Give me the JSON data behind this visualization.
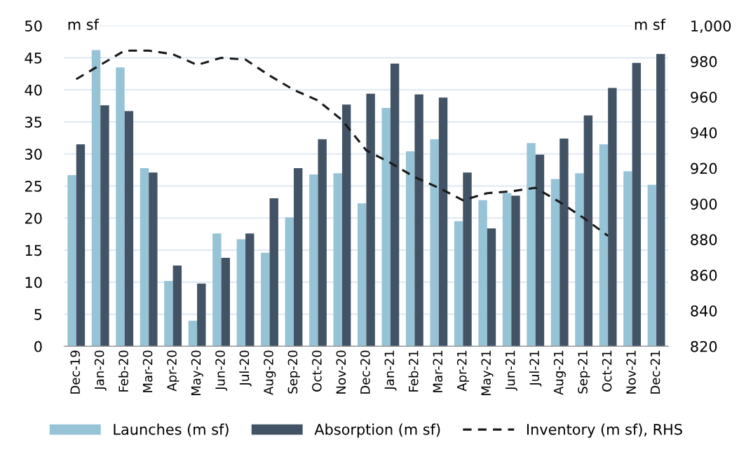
{
  "chart_data": {
    "type": "bar",
    "categories": [
      "Dec-19",
      "Jan-20",
      "Feb-20",
      "Mar-20",
      "Apr-20",
      "May-20",
      "Jun-20",
      "Jul-20",
      "Aug-20",
      "Sep-20",
      "Oct-20",
      "Nov-20",
      "Dec-20",
      "Jan-21",
      "Feb-21",
      "Mar-21",
      "Apr-21",
      "May-21",
      "Jun-21",
      "Jul-21",
      "Aug-21",
      "Sep-21",
      "Oct-21",
      "Nov-21",
      "Dec-21"
    ],
    "series": [
      {
        "name": "Launches (m sf)",
        "color": "#96c3d5",
        "values": [
          26.7,
          46.2,
          43.5,
          27.8,
          10.2,
          4.0,
          17.6,
          16.7,
          14.6,
          20.1,
          26.8,
          27.0,
          22.3,
          37.2,
          30.4,
          32.3,
          19.5,
          22.8,
          23.9,
          31.7,
          26.1,
          27.0,
          31.5,
          27.3,
          25.2
        ]
      },
      {
        "name": "Absorption (m sf)",
        "color": "#435366",
        "values": [
          31.5,
          37.6,
          36.7,
          27.1,
          12.6,
          9.8,
          13.8,
          17.6,
          23.1,
          27.8,
          32.3,
          37.7,
          39.4,
          44.1,
          39.3,
          38.8,
          27.1,
          18.4,
          23.5,
          29.9,
          32.4,
          36.0,
          40.3,
          44.2,
          45.6
        ]
      },
      {
        "name": "Inventory (m sf), RHS",
        "type": "line",
        "axis": "y2",
        "color": "#1a1a1a",
        "line_style": "dashed",
        "values": [
          970,
          978,
          986,
          986,
          984,
          978,
          982,
          981,
          972,
          964,
          958,
          947,
          930,
          923,
          915,
          909,
          902,
          906,
          907,
          909,
          901,
          892,
          882,
          null,
          null
        ]
      }
    ],
    "ylim": [
      0,
      50
    ],
    "yticks": [
      0,
      5,
      10,
      15,
      20,
      25,
      30,
      35,
      40,
      45,
      50
    ],
    "y2lim": [
      820,
      1000
    ],
    "y2ticks": [
      820,
      840,
      860,
      880,
      900,
      920,
      940,
      960,
      980,
      {
        "value": 1000,
        "label": "1,000"
      }
    ],
    "annotations": [
      "m sf",
      "m sf"
    ],
    "grid": "y",
    "legend": "bottom",
    "marker": "none"
  }
}
